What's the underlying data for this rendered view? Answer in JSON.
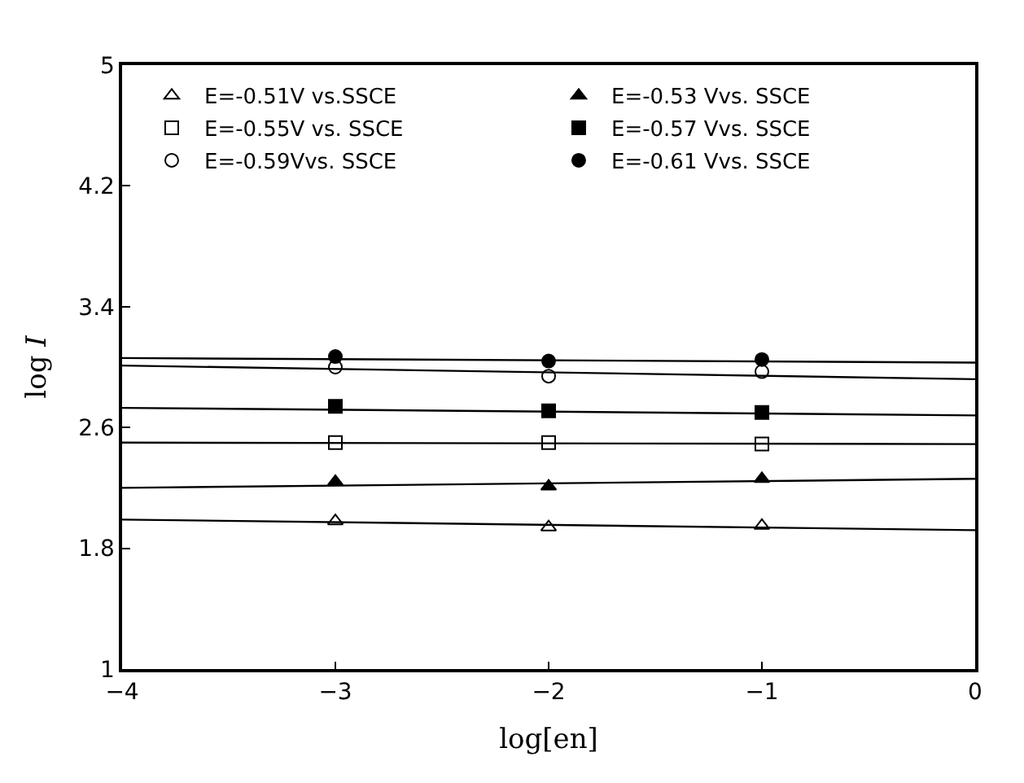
{
  "chart_data": {
    "type": "scatter",
    "xlabel": "log[en]",
    "ylabel": "log I",
    "xlim": [
      -4,
      0
    ],
    "ylim": [
      1,
      5
    ],
    "xticks": [
      {
        "value": -4,
        "label": "−4"
      },
      {
        "value": -3,
        "label": "−3"
      },
      {
        "value": -2,
        "label": "−2"
      },
      {
        "value": -1,
        "label": "−1"
      },
      0
    ],
    "yticks": [
      1,
      1.8,
      2.6,
      3.4,
      4.2,
      5
    ],
    "legend": "top left",
    "series": [
      {
        "name": "E=-0.51V vs.SSCE",
        "color": "#000000",
        "marker": "triangle-open",
        "x": [
          -3,
          -2,
          -1
        ],
        "values": [
          1.98,
          1.94,
          1.95
        ]
      },
      {
        "name": "E=-0.53 Vvs. SSCE",
        "color": "#000000",
        "marker": "triangle",
        "x": [
          -3,
          -2,
          -1
        ],
        "values": [
          2.24,
          2.21,
          2.26
        ]
      },
      {
        "name": "E=-0.55V vs. SSCE",
        "color": "#000000",
        "marker": "square-open",
        "x": [
          -3,
          -2,
          -1
        ],
        "values": [
          2.5,
          2.5,
          2.49
        ]
      },
      {
        "name": "E=-0.57 Vvs. SSCE",
        "color": "#000000",
        "marker": "square",
        "x": [
          -3,
          -2,
          -1
        ],
        "values": [
          2.74,
          2.71,
          2.7
        ]
      },
      {
        "name": "E=-0.59Vvs. SSCE",
        "color": "#000000",
        "marker": "circle-open",
        "x": [
          -3,
          -2,
          -1
        ],
        "values": [
          3.0,
          2.94,
          2.97
        ]
      },
      {
        "name": "E=-0.61 Vvs. SSCE",
        "color": "#000000",
        "marker": "circle",
        "x": [
          -3,
          -2,
          -1
        ],
        "values": [
          3.07,
          3.04,
          3.05
        ]
      },
      {
        "type": "line",
        "color": "#000000",
        "x": [
          -4,
          0
        ],
        "values": [
          1.99,
          1.92
        ]
      },
      {
        "type": "line",
        "color": "#000000",
        "x": [
          -4,
          0
        ],
        "values": [
          2.2,
          2.26
        ]
      },
      {
        "type": "line",
        "color": "#000000",
        "x": [
          -4,
          0
        ],
        "values": [
          2.5,
          2.49
        ]
      },
      {
        "type": "line",
        "color": "#000000",
        "x": [
          -4,
          0
        ],
        "values": [
          2.73,
          2.68
        ]
      },
      {
        "type": "line",
        "color": "#000000",
        "x": [
          -4,
          0
        ],
        "values": [
          3.01,
          2.92
        ]
      },
      {
        "type": "line",
        "color": "#000000",
        "x": [
          -4,
          0
        ],
        "values": [
          3.06,
          3.03
        ]
      }
    ]
  }
}
